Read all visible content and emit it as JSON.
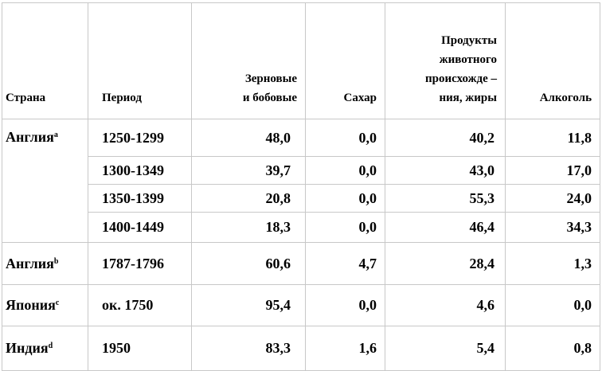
{
  "table": {
    "header": [
      [
        "Страна"
      ],
      [
        "Период"
      ],
      [
        "Зерновые",
        "и бобовые"
      ],
      [
        "Сахар"
      ],
      [
        "Продукты",
        "животного",
        "происхожде –",
        "ния, жиры"
      ],
      [
        "Алкоголь"
      ]
    ],
    "groups": [
      {
        "country": "Англия",
        "note": "a",
        "rows": [
          [
            "1250-1299",
            "48,0",
            "0,0",
            "40,2",
            "11,8"
          ],
          [
            "1300-1349",
            "39,7",
            "0,0",
            "43,0",
            "17,0"
          ],
          [
            "1350-1399",
            "20,8",
            "0,0",
            "55,3",
            "24,0"
          ],
          [
            "1400-1449",
            "18,3",
            "0,0",
            "46,4",
            "34,3"
          ]
        ]
      },
      {
        "country": "Англия",
        "note": "b",
        "rows": [
          [
            "1787-1796",
            "60,6",
            "4,7",
            "28,4",
            "1,3"
          ]
        ]
      },
      {
        "country": "Япония",
        "note": "c",
        "rows": [
          [
            "ок. 1750",
            "95,4",
            "0,0",
            "4,6",
            "0,0"
          ]
        ]
      },
      {
        "country": "Индия",
        "note": "d",
        "rows": [
          [
            "1950",
            "83,3",
            "1,6",
            "5,4",
            "0,8"
          ]
        ]
      }
    ]
  }
}
